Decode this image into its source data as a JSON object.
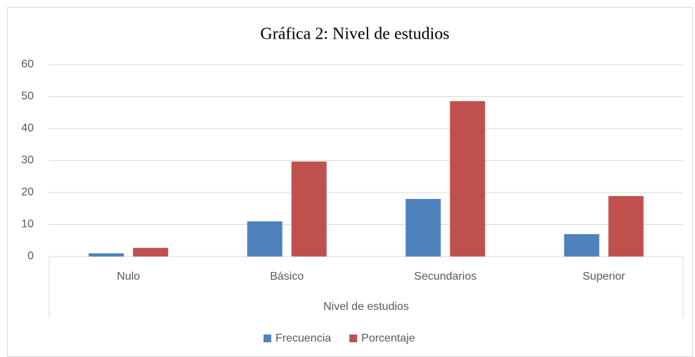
{
  "chart_data": {
    "type": "bar",
    "title": "Gráfica  2: Nivel  de estudios",
    "x_label": "Nivel de estudios",
    "categories": [
      "Nulo",
      "Básico",
      "Secundarios",
      "Superior"
    ],
    "series": [
      {
        "name": "Frecuencia",
        "color": "#4f81bd",
        "values": [
          1,
          11,
          18,
          7
        ]
      },
      {
        "name": "Porcentaje",
        "color": "#c0504d",
        "values": [
          2.7,
          29.7,
          48.6,
          18.9
        ]
      }
    ],
    "ylim": [
      0,
      60
    ],
    "yticks": [
      0,
      10,
      20,
      30,
      40,
      50,
      60
    ],
    "grid": true,
    "legend": "bottom"
  }
}
